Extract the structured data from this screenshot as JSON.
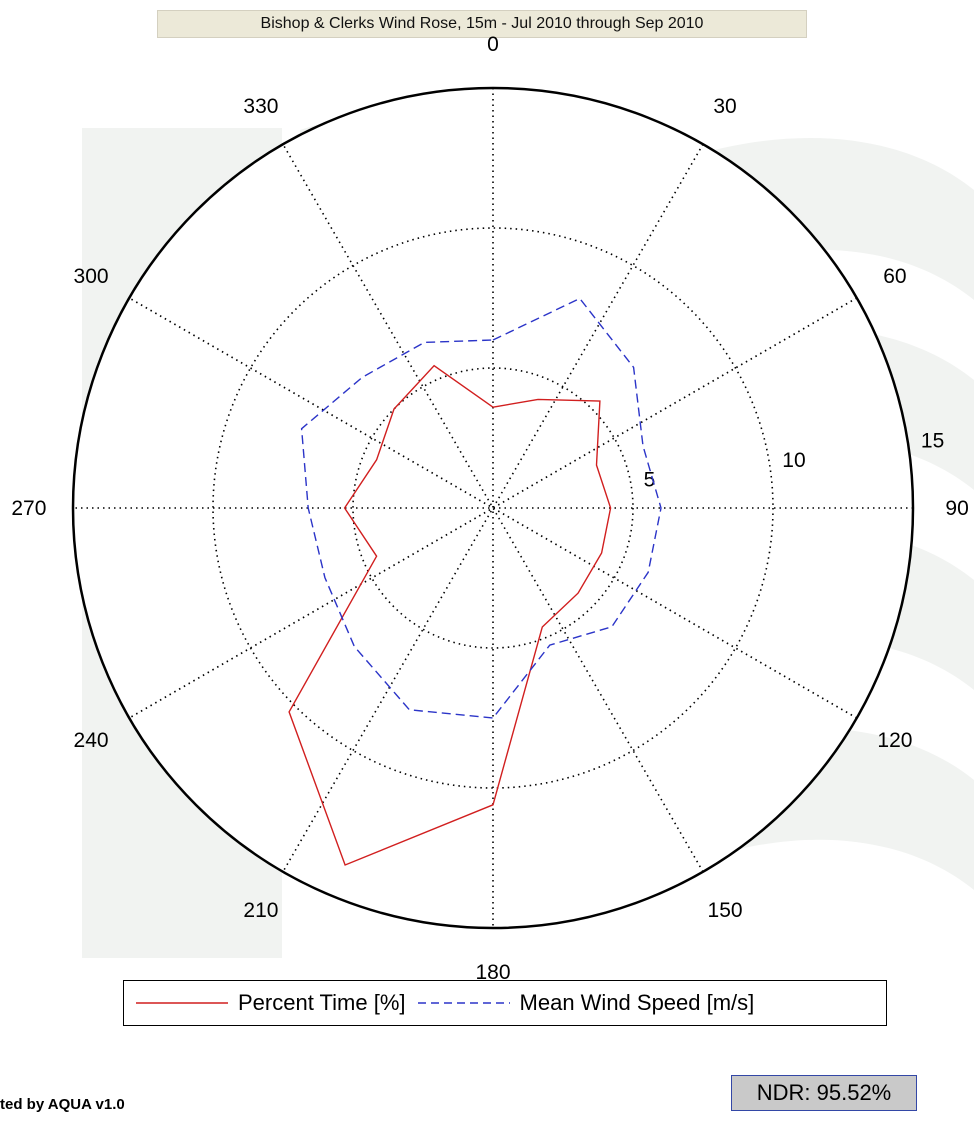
{
  "chart_data": {
    "type": "polar-line",
    "title": "Bishop & Clerks Wind Rose, 15m - Jul 2010 through Sep 2010",
    "angle_ticks": [
      "0",
      "30",
      "60",
      "90",
      "120",
      "150",
      "180",
      "210",
      "240",
      "270",
      "300",
      "330"
    ],
    "angle_values_deg": [
      0,
      30,
      60,
      90,
      120,
      150,
      180,
      210,
      240,
      270,
      300,
      330
    ],
    "radial_ticks": [
      "5",
      "10",
      "15"
    ],
    "radial_values": [
      5,
      10,
      15
    ],
    "rlim": [
      0,
      15
    ],
    "grid": true,
    "legend_placement": "bottom",
    "directions_deg": [
      0,
      22.5,
      45,
      67.5,
      90,
      112.5,
      135,
      157.5,
      180,
      202.5,
      225,
      247.5,
      270,
      292.5,
      315,
      337.5
    ],
    "series": [
      {
        "name": "Percent Time [%]",
        "color": "#d11f1f",
        "dash": "solid",
        "values": [
          3.6,
          4.2,
          5.4,
          4.0,
          4.2,
          4.2,
          4.3,
          4.6,
          10.6,
          13.8,
          10.3,
          4.5,
          5.3,
          4.5,
          5.0,
          5.5
        ]
      },
      {
        "name": "Mean Wind Speed [m/s]",
        "color": "#2b34c8",
        "dash": "dashed",
        "values": [
          6.0,
          8.1,
          7.1,
          5.8,
          6.0,
          6.0,
          6.0,
          5.3,
          7.5,
          7.8,
          7.0,
          6.5,
          6.6,
          7.4,
          6.6,
          6.4
        ]
      }
    ]
  },
  "legend": {
    "items": [
      "Percent Time [%]",
      "Mean Wind Speed [m/s]"
    ]
  },
  "ndr": {
    "label": "NDR: 95.52%"
  },
  "footer": {
    "text": "ted by AQUA v1.0"
  }
}
